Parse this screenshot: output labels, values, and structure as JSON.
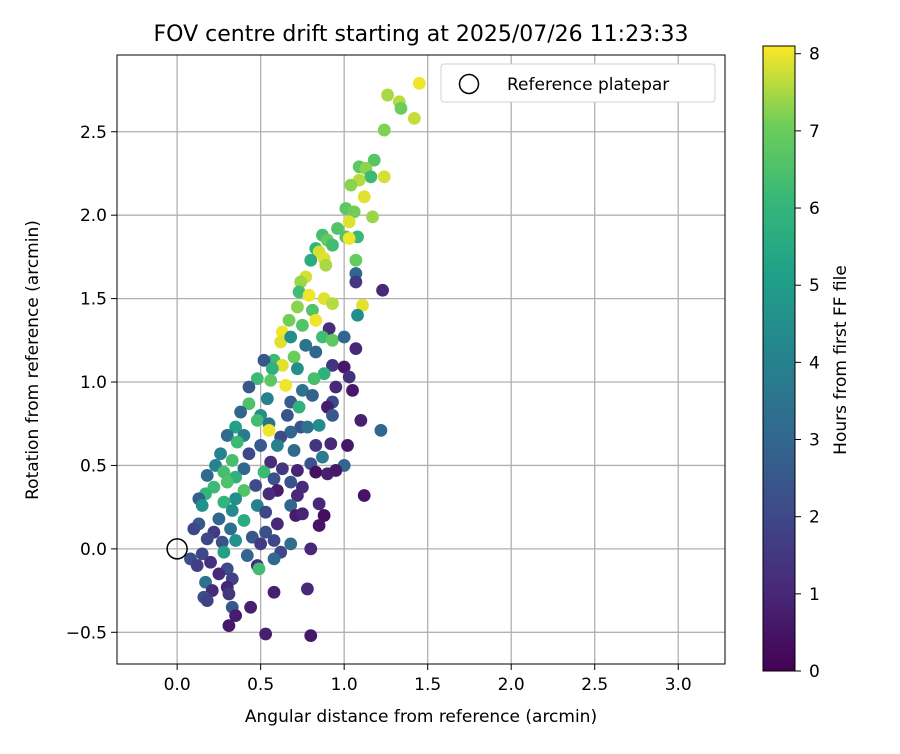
{
  "chart_data": {
    "type": "scatter",
    "title": "FOV centre drift starting at 2025/07/26 11:23:33",
    "xlabel": "Angular distance from reference (arcmin)",
    "ylabel": "Rotation from reference (arcmin)",
    "xlim": [
      -0.36,
      3.28
    ],
    "ylim": [
      -0.69,
      2.96
    ],
    "xticks": [
      "0.0",
      "0.5",
      "1.0",
      "1.5",
      "2.0",
      "2.5",
      "3.0"
    ],
    "yticks": [
      "−0.5",
      "0.0",
      "0.5",
      "1.0",
      "1.5",
      "2.0",
      "2.5"
    ],
    "grid": true,
    "legend": {
      "placement": "top-right",
      "entries": [
        "Reference platepar"
      ]
    },
    "reference_point": {
      "x": 0.0,
      "y": 0.0
    },
    "colorbar": {
      "label": "Hours from first FF file",
      "colormap": "viridis",
      "range": [
        0,
        8.1
      ],
      "ticks": [
        "0",
        "1",
        "2",
        "3",
        "4",
        "5",
        "6",
        "7",
        "8"
      ]
    },
    "points": [
      [
        1.45,
        2.79,
        8.0
      ],
      [
        1.26,
        2.72,
        7.5
      ],
      [
        1.33,
        2.68,
        7.6
      ],
      [
        1.34,
        2.64,
        7.0
      ],
      [
        1.42,
        2.58,
        7.7
      ],
      [
        1.24,
        2.51,
        7.2
      ],
      [
        1.18,
        2.33,
        6.7
      ],
      [
        1.09,
        2.29,
        6.8
      ],
      [
        1.13,
        2.28,
        7.3
      ],
      [
        1.24,
        2.23,
        7.8
      ],
      [
        1.16,
        2.23,
        6.2
      ],
      [
        1.09,
        2.21,
        7.6
      ],
      [
        1.04,
        2.18,
        7.3
      ],
      [
        1.12,
        2.11,
        7.9
      ],
      [
        1.01,
        2.04,
        6.8
      ],
      [
        1.06,
        2.02,
        7.1
      ],
      [
        1.17,
        1.99,
        7.4
      ],
      [
        1.03,
        1.96,
        7.9
      ],
      [
        0.96,
        1.92,
        6.6
      ],
      [
        0.87,
        1.88,
        6.4
      ],
      [
        1.01,
        1.87,
        6.6
      ],
      [
        1.08,
        1.87,
        6.1
      ],
      [
        1.03,
        1.86,
        8.0
      ],
      [
        0.9,
        1.85,
        6.9
      ],
      [
        0.93,
        1.82,
        6.3
      ],
      [
        0.83,
        1.8,
        5.9
      ],
      [
        0.85,
        1.78,
        7.8
      ],
      [
        0.88,
        1.74,
        7.9
      ],
      [
        0.8,
        1.73,
        5.6
      ],
      [
        0.89,
        1.7,
        7.5
      ],
      [
        1.07,
        1.73,
        6.9
      ],
      [
        0.77,
        1.63,
        7.8
      ],
      [
        0.74,
        1.6,
        7.4
      ],
      [
        1.07,
        1.65,
        3.0
      ],
      [
        1.07,
        1.6,
        1.5
      ],
      [
        1.23,
        1.55,
        1.0
      ],
      [
        0.73,
        1.54,
        6.3
      ],
      [
        0.79,
        1.52,
        8.0
      ],
      [
        0.88,
        1.5,
        7.9
      ],
      [
        0.93,
        1.47,
        7.6
      ],
      [
        1.11,
        1.46,
        7.9
      ],
      [
        0.72,
        1.45,
        7.3
      ],
      [
        0.81,
        1.43,
        6.6
      ],
      [
        1.08,
        1.4,
        4.5
      ],
      [
        0.83,
        1.37,
        8.0
      ],
      [
        0.67,
        1.37,
        7.1
      ],
      [
        0.75,
        1.34,
        6.6
      ],
      [
        0.91,
        1.32,
        1.2
      ],
      [
        0.63,
        1.3,
        8.0
      ],
      [
        0.87,
        1.27,
        6.3
      ],
      [
        0.93,
        1.25,
        6.8
      ],
      [
        1.0,
        1.27,
        3.0
      ],
      [
        0.62,
        1.24,
        7.9
      ],
      [
        0.68,
        1.27,
        4.5
      ],
      [
        0.77,
        1.22,
        3.5
      ],
      [
        0.83,
        1.18,
        3.0
      ],
      [
        1.07,
        1.2,
        1.0
      ],
      [
        0.7,
        1.15,
        7.0
      ],
      [
        0.58,
        1.13,
        6.2
      ],
      [
        0.72,
        1.08,
        4.5
      ],
      [
        0.52,
        1.13,
        2.5
      ],
      [
        0.63,
        1.1,
        7.9
      ],
      [
        0.93,
        1.1,
        1.4
      ],
      [
        1.0,
        1.09,
        0.6
      ],
      [
        0.57,
        1.08,
        5.8
      ],
      [
        0.88,
        1.05,
        5.8
      ],
      [
        0.48,
        1.02,
        6.2
      ],
      [
        0.56,
        1.01,
        6.8
      ],
      [
        0.82,
        1.02,
        6.4
      ],
      [
        1.03,
        1.03,
        1.3
      ],
      [
        0.65,
        0.98,
        8.0
      ],
      [
        0.43,
        0.97,
        2.5
      ],
      [
        0.95,
        0.97,
        1.0
      ],
      [
        0.75,
        0.95,
        3.5
      ],
      [
        0.81,
        0.92,
        2.8
      ],
      [
        0.54,
        0.9,
        4.0
      ],
      [
        0.68,
        0.88,
        2.6
      ],
      [
        0.93,
        0.88,
        2.0
      ],
      [
        0.43,
        0.87,
        6.5
      ],
      [
        1.05,
        0.95,
        0.6
      ],
      [
        0.9,
        0.85,
        0.7
      ],
      [
        0.73,
        0.85,
        5.8
      ],
      [
        0.38,
        0.82,
        3.0
      ],
      [
        0.5,
        0.8,
        4.5
      ],
      [
        0.66,
        0.8,
        2.4
      ],
      [
        0.93,
        0.8,
        2.5
      ],
      [
        0.48,
        0.77,
        6.3
      ],
      [
        1.1,
        0.77,
        0.8
      ],
      [
        0.55,
        0.75,
        3.5
      ],
      [
        0.74,
        0.73,
        2.4
      ],
      [
        0.35,
        0.73,
        5.2
      ],
      [
        0.78,
        0.73,
        3.4
      ],
      [
        0.85,
        0.74,
        4.4
      ],
      [
        0.55,
        0.71,
        8.0
      ],
      [
        1.22,
        0.71,
        3.0
      ],
      [
        0.3,
        0.68,
        3.2
      ],
      [
        0.4,
        0.68,
        3.8
      ],
      [
        0.68,
        0.7,
        3.0
      ],
      [
        0.62,
        0.67,
        2.1
      ],
      [
        0.36,
        0.64,
        6.2
      ],
      [
        0.5,
        0.62,
        2.6
      ],
      [
        0.6,
        0.62,
        4.0
      ],
      [
        0.83,
        0.62,
        1.4
      ],
      [
        0.7,
        0.59,
        3.1
      ],
      [
        0.26,
        0.57,
        4.0
      ],
      [
        0.43,
        0.57,
        2.0
      ],
      [
        0.92,
        0.63,
        1.0
      ],
      [
        1.02,
        0.62,
        0.6
      ],
      [
        0.33,
        0.53,
        6.4
      ],
      [
        0.56,
        0.52,
        1.2
      ],
      [
        0.8,
        0.51,
        2.4
      ],
      [
        0.87,
        0.55,
        3.8
      ],
      [
        0.23,
        0.5,
        4.0
      ],
      [
        0.4,
        0.48,
        3.0
      ],
      [
        0.63,
        0.48,
        1.5
      ],
      [
        0.83,
        0.46,
        0.4
      ],
      [
        1.0,
        0.5,
        3.0
      ],
      [
        0.28,
        0.46,
        6.4
      ],
      [
        0.52,
        0.46,
        6.2
      ],
      [
        0.72,
        0.47,
        0.9
      ],
      [
        0.18,
        0.44,
        3.1
      ],
      [
        0.35,
        0.43,
        5.8
      ],
      [
        0.58,
        0.42,
        2.3
      ],
      [
        0.9,
        0.45,
        0.8
      ],
      [
        0.3,
        0.4,
        6.5
      ],
      [
        0.47,
        0.38,
        2.1
      ],
      [
        0.68,
        0.4,
        2.4
      ],
      [
        0.95,
        0.47,
        0.6
      ],
      [
        0.22,
        0.37,
        6.2
      ],
      [
        0.4,
        0.35,
        6.6
      ],
      [
        0.6,
        0.35,
        0.7
      ],
      [
        0.75,
        0.37,
        1.1
      ],
      [
        0.17,
        0.33,
        6.0
      ],
      [
        0.35,
        0.3,
        4.5
      ],
      [
        0.55,
        0.33,
        1.2
      ],
      [
        0.72,
        0.32,
        1.0
      ],
      [
        1.12,
        0.32,
        0.5
      ],
      [
        0.13,
        0.3,
        2.7
      ],
      [
        0.28,
        0.28,
        5.9
      ],
      [
        0.48,
        0.26,
        4.0
      ],
      [
        0.68,
        0.26,
        3.0
      ],
      [
        0.85,
        0.27,
        1.0
      ],
      [
        0.15,
        0.26,
        4.6
      ],
      [
        0.33,
        0.23,
        4.4
      ],
      [
        0.53,
        0.22,
        2.0
      ],
      [
        0.71,
        0.2,
        0.7
      ],
      [
        0.75,
        0.21,
        0.9
      ],
      [
        0.88,
        0.2,
        0.3
      ],
      [
        0.25,
        0.18,
        3.0
      ],
      [
        0.4,
        0.17,
        5.6
      ],
      [
        0.6,
        0.15,
        1.0
      ],
      [
        0.85,
        0.14,
        0.5
      ],
      [
        0.13,
        0.15,
        2.5
      ],
      [
        0.32,
        0.12,
        3.3
      ],
      [
        0.53,
        0.1,
        2.3
      ],
      [
        0.1,
        0.12,
        2.0
      ],
      [
        0.22,
        0.1,
        1.6
      ],
      [
        0.45,
        0.07,
        2.5
      ],
      [
        0.18,
        0.06,
        2.0
      ],
      [
        0.35,
        0.05,
        4.6
      ],
      [
        0.58,
        0.05,
        2.0
      ],
      [
        0.68,
        0.03,
        3.3
      ],
      [
        0.5,
        0.03,
        1.6
      ],
      [
        0.27,
        0.04,
        2.3
      ],
      [
        0.8,
        0.0,
        1.0
      ],
      [
        0.15,
        -0.03,
        2.0
      ],
      [
        0.28,
        -0.02,
        5.2
      ],
      [
        0.42,
        -0.04,
        3.0
      ],
      [
        0.62,
        -0.02,
        2.0
      ],
      [
        0.08,
        -0.06,
        2.2
      ],
      [
        0.2,
        -0.08,
        1.3
      ],
      [
        0.48,
        -0.1,
        1.2
      ],
      [
        0.12,
        -0.1,
        1.7
      ],
      [
        0.3,
        -0.12,
        2.1
      ],
      [
        0.49,
        -0.12,
        6.3
      ],
      [
        0.58,
        -0.06,
        3.1
      ],
      [
        0.25,
        -0.15,
        1.0
      ],
      [
        0.17,
        -0.2,
        3.5
      ],
      [
        0.33,
        -0.18,
        1.8
      ],
      [
        0.3,
        -0.23,
        0.9
      ],
      [
        0.21,
        -0.25,
        1.1
      ],
      [
        0.78,
        -0.24,
        1.0
      ],
      [
        0.31,
        -0.27,
        1.5
      ],
      [
        0.58,
        -0.26,
        0.8
      ],
      [
        0.16,
        -0.29,
        2.2
      ],
      [
        0.18,
        -0.31,
        1.8
      ],
      [
        0.33,
        -0.35,
        2.5
      ],
      [
        0.44,
        -0.35,
        0.8
      ],
      [
        0.35,
        -0.4,
        0.7
      ],
      [
        0.31,
        -0.46,
        0.6
      ],
      [
        0.53,
        -0.51,
        0.8
      ],
      [
        0.8,
        -0.52,
        0.6
      ]
    ]
  }
}
